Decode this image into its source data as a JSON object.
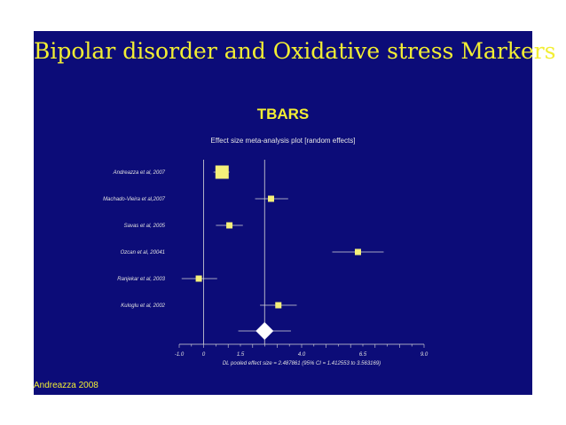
{
  "slide": {
    "title": "Bipolar disorder and Oxidative stress Markers",
    "footer": "Andreazza 2008"
  },
  "colors": {
    "background": "#0c0c78",
    "title": "#f2ee33",
    "marker": "#f5f07a",
    "axis": "#d8d8d8",
    "pooled": "#ffffff"
  },
  "chart_data": {
    "type": "forest",
    "title": "TBARS",
    "subtitle": "Effect size meta-analysis plot [random effects]",
    "studies": [
      {
        "label": "Andreazza et al, 2007",
        "effect": 0.75,
        "ci": [
          0.4,
          1.05
        ],
        "weight": "large"
      },
      {
        "label": "Machado-Vieira et al,2007",
        "effect": 2.75,
        "ci": [
          2.1,
          3.45
        ],
        "weight": "small"
      },
      {
        "label": "Savas et al, 2005",
        "effect": 1.05,
        "ci": [
          0.5,
          1.6
        ],
        "weight": "small"
      },
      {
        "label": "Ozcan et al, 20041",
        "effect": 6.3,
        "ci": [
          5.25,
          7.35
        ],
        "weight": "small"
      },
      {
        "label": "Ranjekar et al, 2003",
        "effect": -0.2,
        "ci": [
          -0.9,
          0.55
        ],
        "weight": "small"
      },
      {
        "label": "Kuloglu et al, 2002",
        "effect": 3.05,
        "ci": [
          2.3,
          3.8
        ],
        "weight": "small"
      }
    ],
    "pooled": {
      "effect": 2.487861,
      "ci": [
        1.412553,
        3.563169
      ]
    },
    "pooled_label": "DL pooled effect size = 2.487861  (95% CI = 1.412553 to 3.563169)",
    "xlim": [
      -1.0,
      9.0
    ],
    "x_tick_labels": [
      {
        "value": -1.0,
        "label": "-1.0"
      },
      {
        "value": 0,
        "label": "0"
      },
      {
        "value": 1.5,
        "label": "1.5"
      },
      {
        "value": 4.0,
        "label": "4.0"
      },
      {
        "value": 6.5,
        "label": "6.5"
      },
      {
        "value": 9.0,
        "label": "9.0"
      }
    ],
    "reference_lines": [
      0,
      2.487861
    ]
  }
}
